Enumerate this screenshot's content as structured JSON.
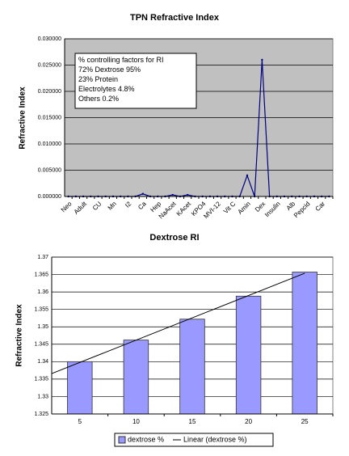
{
  "chart_data": [
    {
      "type": "line",
      "title": "TPN Refractive Index",
      "ylabel": "Refractive Index",
      "categories": [
        "Neo",
        null,
        "Adult",
        null,
        "CU",
        null,
        "Mn",
        null,
        "I2",
        null,
        "Ca",
        null,
        "Hep",
        null,
        "NaAcet",
        null,
        "KAcet",
        null,
        "KPO4",
        null,
        "MVI-12",
        null,
        "Vit C",
        null,
        "Amin",
        null,
        "Dex",
        null,
        "Insulin",
        null,
        "Alb",
        null,
        "Pepcid",
        null,
        "Car",
        null
      ],
      "values": [
        0,
        0,
        0,
        0,
        0,
        0,
        0,
        0,
        0,
        0,
        0.0005,
        0,
        0,
        0,
        0.0003,
        0,
        0.0003,
        0,
        0,
        0,
        0,
        0,
        0,
        0,
        0.004,
        0,
        0.026,
        0,
        0,
        0,
        0,
        0,
        0,
        0,
        0,
        0
      ],
      "color": "#000080",
      "ylim": [
        0,
        0.03
      ],
      "yticks": [
        {
          "value": 0,
          "label": "0.000000"
        },
        {
          "value": 0.005,
          "label": "0.005000"
        },
        {
          "value": 0.01,
          "label": "0.010000"
        },
        {
          "value": 0.015,
          "label": "0.015000"
        },
        {
          "value": 0.02,
          "label": "0.020000"
        },
        {
          "value": 0.025,
          "label": "0.025000"
        },
        {
          "value": 0.03,
          "label": "0.030000"
        }
      ],
      "grid": true,
      "annotation": [
        "% controlling factors for RI",
        "72% Dextrose     95%",
        "23% Protein",
        "Electrolytes 4.8%",
        "Others 0.2%"
      ]
    },
    {
      "type": "bar",
      "title": "Dextrose RI",
      "ylabel": "Refractive Index",
      "categories": [
        "5",
        "10",
        "15",
        "20",
        "25"
      ],
      "series": [
        {
          "name": "dextrose %",
          "color": "#9999ff",
          "values": [
            1.34,
            1.3462,
            1.3522,
            1.3588,
            1.3657
          ]
        }
      ],
      "trendline": {
        "name": "Linear (dextrose %)",
        "color": "#000000"
      },
      "ylim": [
        1.325,
        1.37
      ],
      "yticks": [
        1.325,
        1.33,
        1.335,
        1.34,
        1.345,
        1.35,
        1.355,
        1.36,
        1.365,
        1.37
      ],
      "grid": true
    }
  ]
}
